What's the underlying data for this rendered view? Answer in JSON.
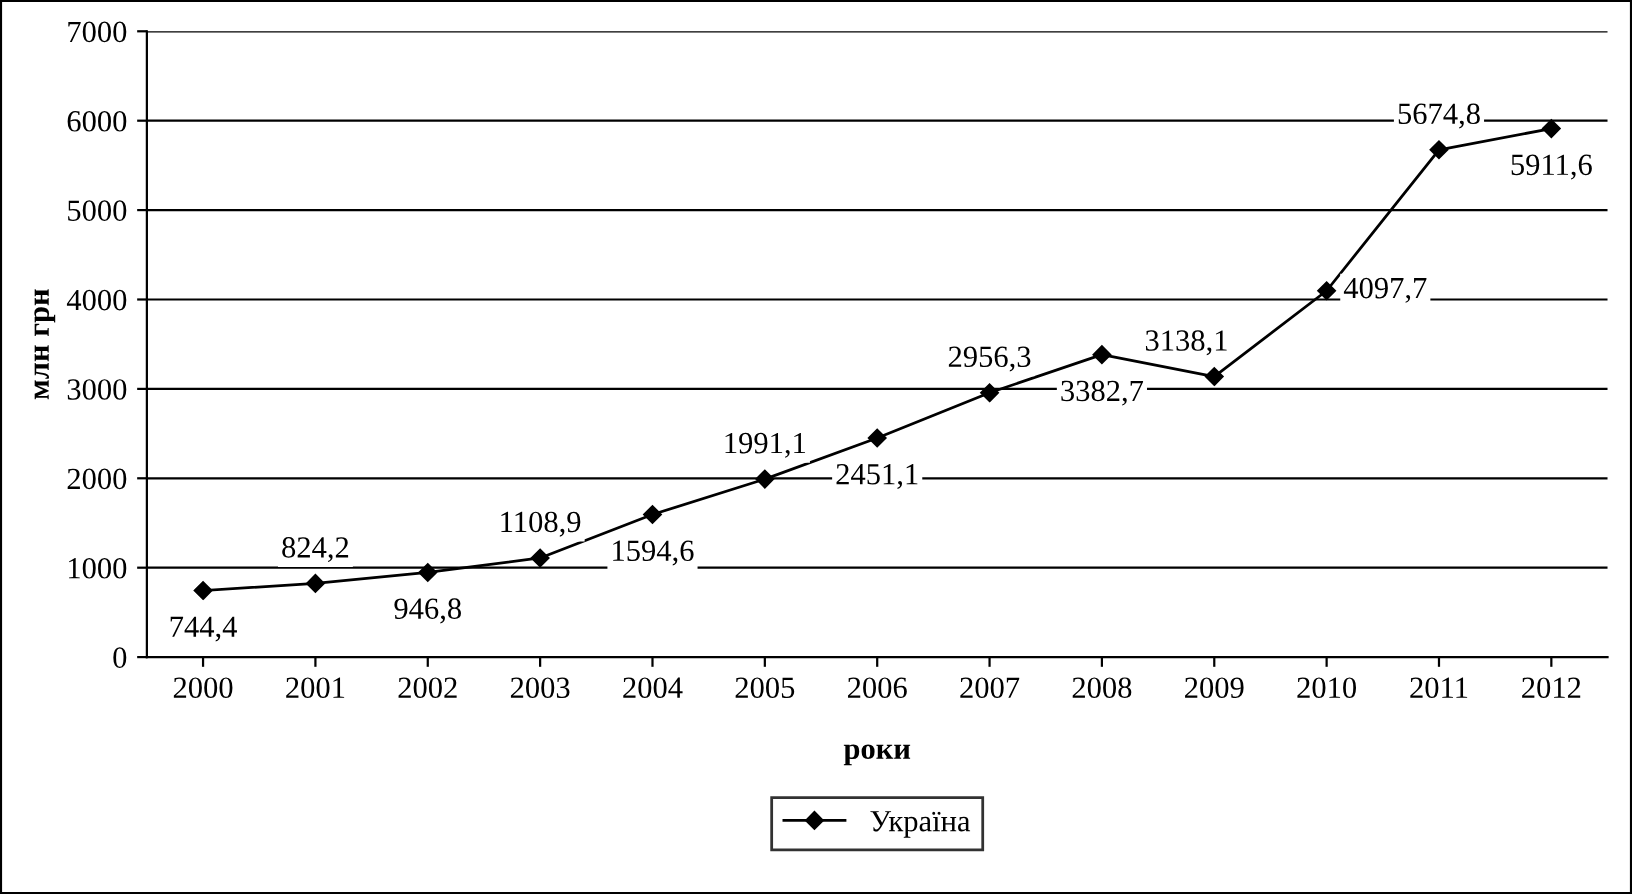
{
  "chart_data": {
    "type": "line",
    "xlabel": "роки",
    "ylabel": "млн грн",
    "categories": [
      "2000",
      "2001",
      "2002",
      "2003",
      "2004",
      "2005",
      "2006",
      "2007",
      "2008",
      "2009",
      "2010",
      "2011",
      "2012"
    ],
    "series": [
      {
        "name": "Україна",
        "color": "#000000",
        "values": [
          744.4,
          824.2,
          946.8,
          1108.9,
          1594.6,
          1991.1,
          2451.1,
          2956.3,
          3382.7,
          3138.1,
          4097.7,
          5674.8,
          5911.6
        ],
        "value_labels": [
          "744,4",
          "824,2",
          "946,8",
          "1108,9",
          "1594,6",
          "1991,1",
          "2451,1",
          "2956,3",
          "3382,7",
          "3138,1",
          "4097,7",
          "5674,8",
          "5911,6"
        ]
      }
    ],
    "ylim": [
      0,
      7000
    ],
    "yticks": [
      0,
      1000,
      2000,
      3000,
      4000,
      5000,
      6000,
      7000
    ],
    "grid": "y",
    "legend": "bottom",
    "marker": "diamond",
    "line_style": "solid"
  }
}
